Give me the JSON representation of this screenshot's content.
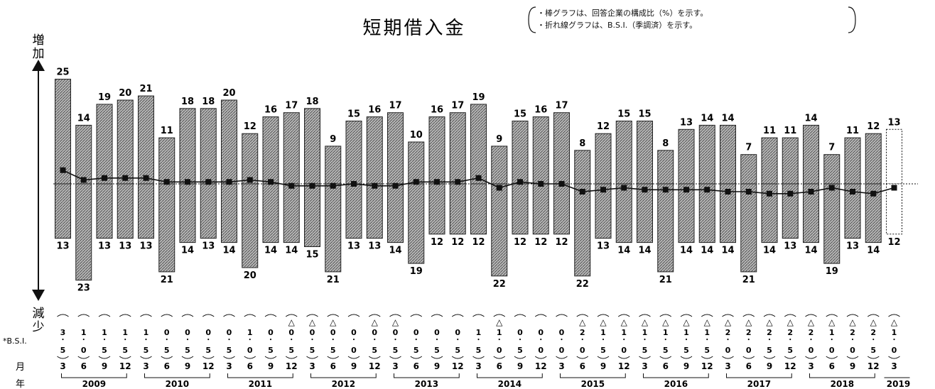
{
  "chart_data": {
    "type": "bar",
    "title": "短期借入金",
    "legend_notes": [
      "・棒グラフは、回答企業の構成比（%）を示す。",
      "・折れ線グラフは、B.S.I.（季調済）を示す。"
    ],
    "y_top_label": "増加",
    "y_bottom_label": "減少",
    "row_labels": {
      "bsi": "*B.S.I.",
      "month": "月",
      "year": "年"
    },
    "years": [
      "2009",
      "2010",
      "2011",
      "2012",
      "2013",
      "2014",
      "2015",
      "2016",
      "2017",
      "2018",
      "2019"
    ],
    "months": [
      "3",
      "6",
      "9",
      "12",
      "3",
      "6",
      "9",
      "12",
      "3",
      "6",
      "9",
      "12",
      "3",
      "6",
      "9",
      "12",
      "3",
      "6",
      "9",
      "12",
      "3",
      "6",
      "9",
      "12",
      "3",
      "6",
      "9",
      "12",
      "3",
      "6",
      "9",
      "12",
      "3",
      "6",
      "9",
      "12",
      "3",
      "6",
      "9",
      "12",
      "3"
    ],
    "increase": [
      25,
      14,
      19,
      20,
      21,
      11,
      18,
      18,
      20,
      12,
      16,
      17,
      18,
      9,
      15,
      16,
      17,
      10,
      16,
      17,
      19,
      9,
      15,
      16,
      17,
      8,
      12,
      15,
      15,
      8,
      13,
      14,
      14,
      7,
      11,
      11,
      14,
      7,
      11,
      12,
      13
    ],
    "decrease": [
      13,
      23,
      13,
      13,
      13,
      21,
      14,
      13,
      14,
      20,
      14,
      14,
      15,
      21,
      13,
      13,
      14,
      19,
      12,
      12,
      12,
      22,
      12,
      12,
      12,
      22,
      13,
      14,
      14,
      21,
      14,
      14,
      14,
      21,
      14,
      13,
      14,
      19,
      13,
      14,
      12
    ],
    "bsi_text": [
      "3.5",
      "1.0",
      "1.5",
      "1.5",
      "1.5",
      "0.5",
      "0.5",
      "0.5",
      "0.5",
      "1.0",
      "0.5",
      "△0.5",
      "△0.5",
      "△0.5",
      "0.0",
      "△0.5",
      "△0.5",
      "0.5",
      "0.5",
      "0.5",
      "1.5",
      "△1.0",
      "0.5",
      "0.0",
      "0.0",
      "△2.0",
      "△1.5",
      "△1.0",
      "△1.5",
      "△1.5",
      "△1.5",
      "△1.5",
      "△2.0",
      "△2.0",
      "△2.5",
      "△2.5",
      "△2.0",
      "△1.0",
      "△2.0",
      "△2.5",
      "△1.0"
    ],
    "bsi": [
      3.5,
      1.0,
      1.5,
      1.5,
      1.5,
      0.5,
      0.5,
      0.5,
      0.5,
      1.0,
      0.5,
      -0.5,
      -0.5,
      -0.5,
      0.0,
      -0.5,
      -0.5,
      0.5,
      0.5,
      0.5,
      1.5,
      -1.0,
      0.5,
      0.0,
      0.0,
      -2.0,
      -1.5,
      -1.0,
      -1.5,
      -1.5,
      -1.5,
      -1.5,
      -2.0,
      -2.0,
      -2.5,
      -2.5,
      -2.0,
      -1.0,
      -2.0,
      -2.5,
      -1.0
    ],
    "last_bar_dashed": true,
    "colors": {
      "bar_fill": "#9a9a9a",
      "line": "#111111",
      "dashed_bar": "#111111"
    }
  }
}
